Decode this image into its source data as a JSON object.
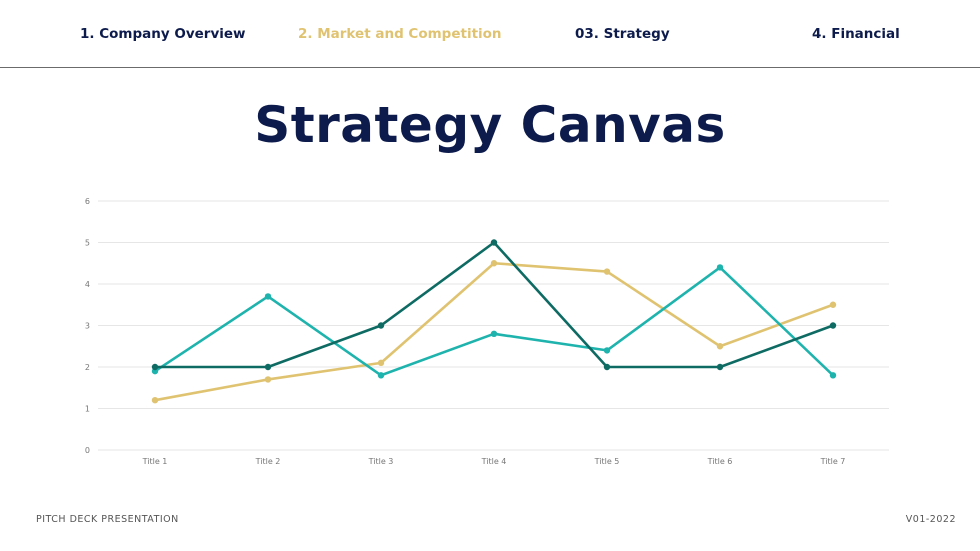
{
  "nav": {
    "items": [
      {
        "label": "1. Company Overview",
        "active": false
      },
      {
        "label": "2. Market and Competition",
        "active": true
      },
      {
        "label": "03. Strategy",
        "active": false
      },
      {
        "label": "4. Financial",
        "active": false
      }
    ]
  },
  "page": {
    "title": "Strategy Canvas"
  },
  "footer": {
    "left": "PITCH DECK PRESENTATION",
    "right": "V01-2022"
  },
  "colors": {
    "navy": "#0d1b4c",
    "gold": "#e0c371",
    "teal": "#1fb3ad",
    "dark_teal": "#0e6b64"
  },
  "chart_data": {
    "type": "line",
    "title": "",
    "xlabel": "",
    "ylabel": "",
    "categories": [
      "Title 1",
      "Title 2",
      "Title 3",
      "Title 4",
      "Title 5",
      "Title 6",
      "Title 7"
    ],
    "ylim": [
      0,
      6
    ],
    "yticks": [
      0,
      1,
      2,
      3,
      4,
      5,
      6
    ],
    "grid": true,
    "series": [
      {
        "color": "#e0c371",
        "values": [
          1.2,
          1.7,
          2.1,
          4.5,
          4.3,
          2.5,
          3.5
        ]
      },
      {
        "color": "#1fb3ad",
        "values": [
          1.9,
          3.7,
          1.8,
          2.8,
          2.4,
          4.4,
          1.8
        ]
      },
      {
        "color": "#0e6b64",
        "values": [
          2.0,
          2.0,
          3.0,
          5.0,
          2.0,
          2.0,
          3.0
        ]
      }
    ]
  }
}
